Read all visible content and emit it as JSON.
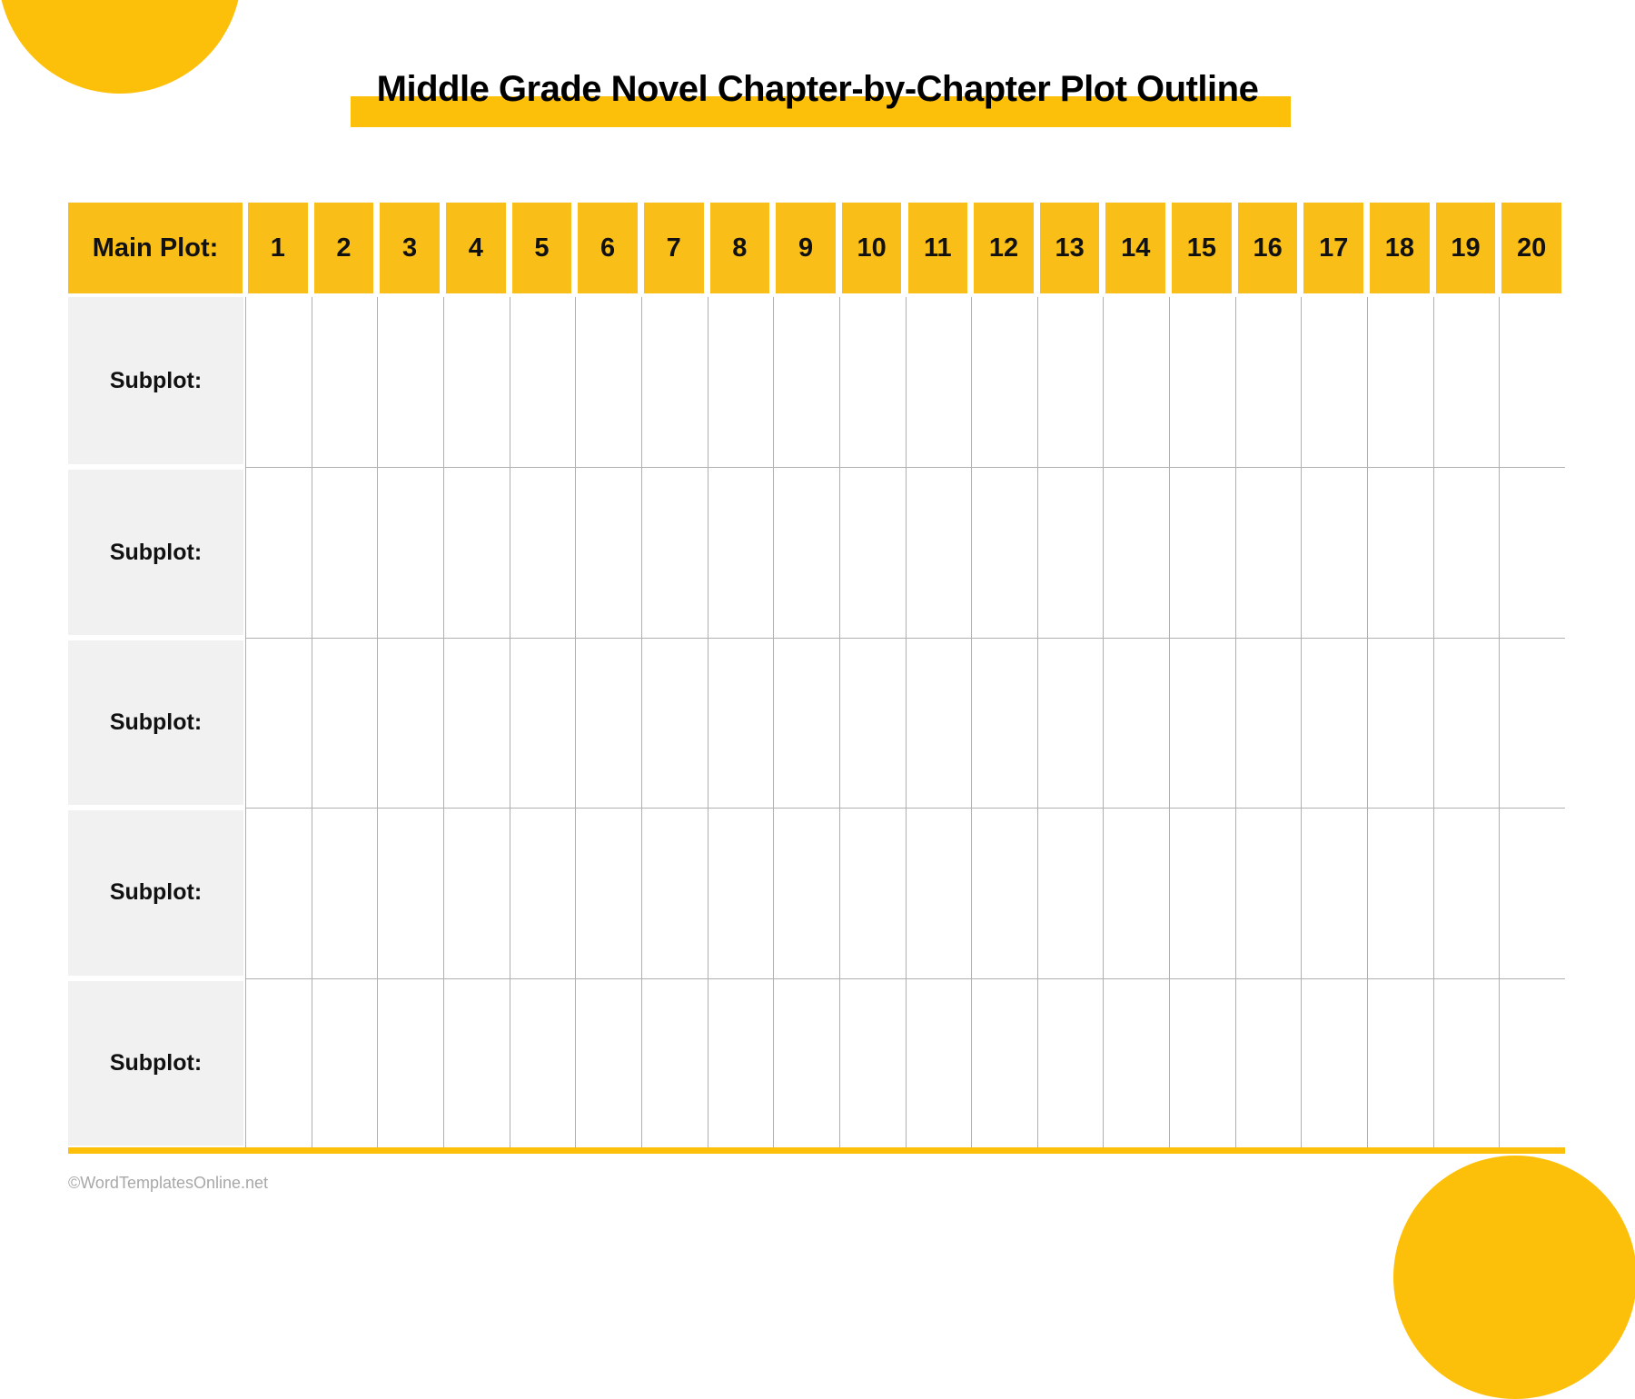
{
  "title": "Middle Grade Novel Chapter-by-Chapter Plot Outline",
  "header": {
    "main_plot_label": "Main Plot:",
    "chapters": [
      "1",
      "2",
      "3",
      "4",
      "5",
      "6",
      "7",
      "8",
      "9",
      "10",
      "11",
      "12",
      "13",
      "14",
      "15",
      "16",
      "17",
      "18",
      "19",
      "20"
    ]
  },
  "rows": [
    {
      "label": "Subplot:"
    },
    {
      "label": "Subplot:"
    },
    {
      "label": "Subplot:"
    },
    {
      "label": "Subplot:"
    },
    {
      "label": "Subplot:"
    }
  ],
  "footer": "©WordTemplatesOnline.net",
  "colors": {
    "accent": "#FDC00A",
    "header": "#F9BE17",
    "label_bg": "#F1F1F1",
    "grid": "#B0B0B0"
  }
}
